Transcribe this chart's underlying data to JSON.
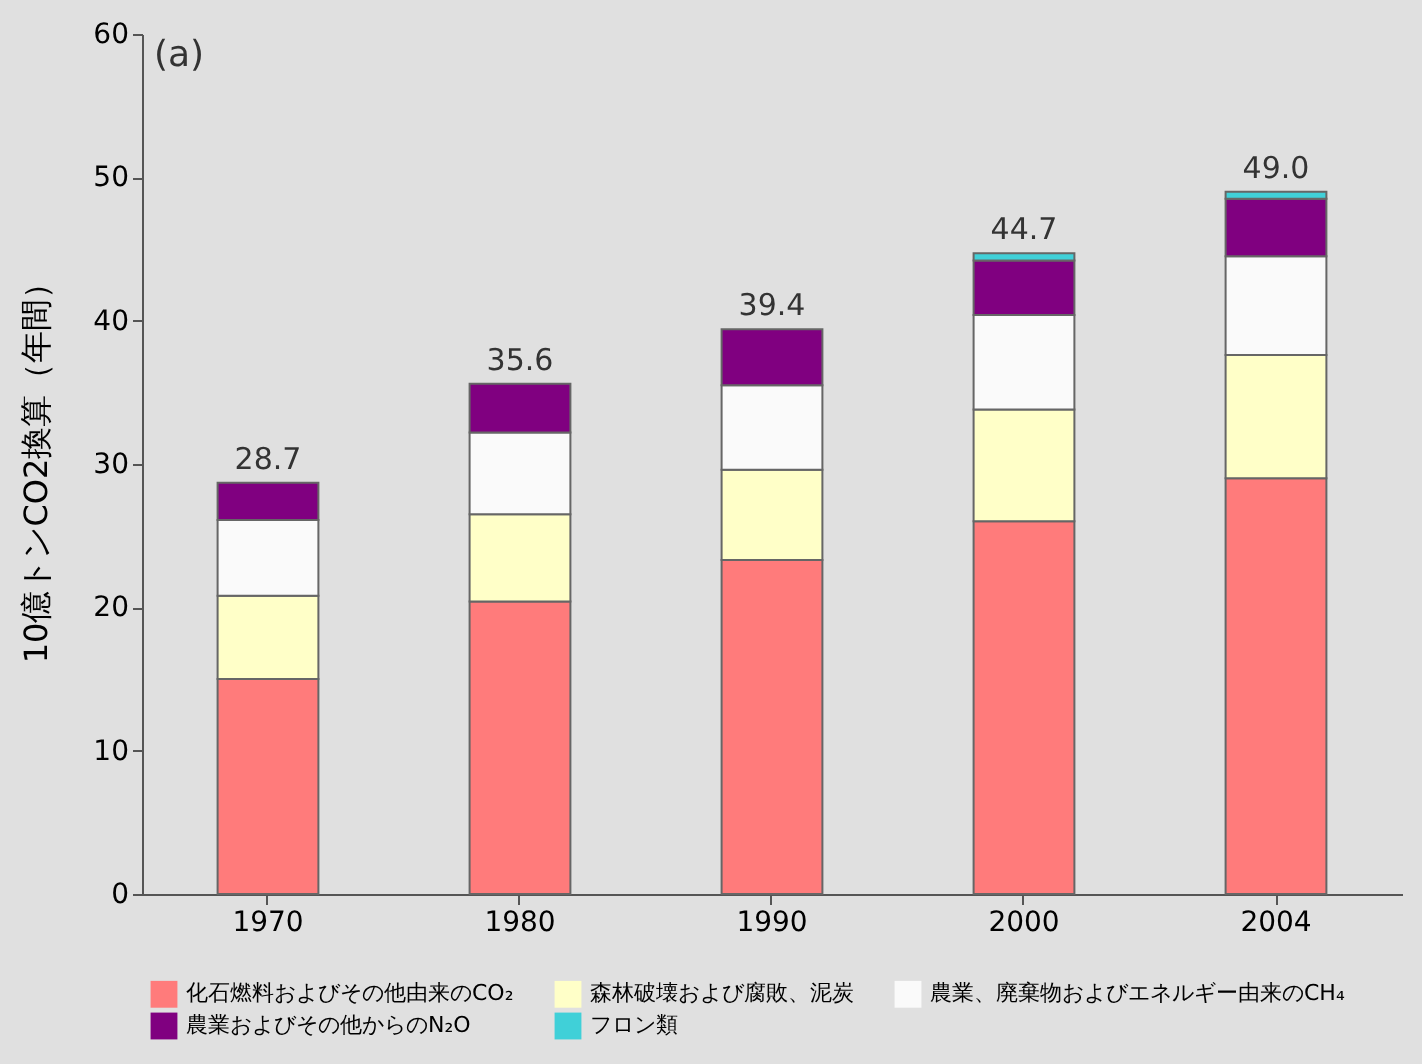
{
  "chart_data": {
    "type": "bar",
    "stacked": true,
    "ylabel": "10億トンCO2換算（年間）",
    "annotations": [
      "(a)"
    ],
    "categories": [
      "1970",
      "1980",
      "1990",
      "2000",
      "2004"
    ],
    "series": [
      {
        "name": "化石燃料およびその他由来のCO₂",
        "color": "#ff7b7b",
        "values": [
          15.0,
          20.4,
          23.3,
          26.0,
          29.0
        ]
      },
      {
        "name": "森林破壊および腐敗、泥炭",
        "color": "#ffffc8",
        "values": [
          5.8,
          6.1,
          6.3,
          7.8,
          8.6
        ]
      },
      {
        "name": "農業、廃棄物およびエネルギー由来のCH₄",
        "color": "#fafafa",
        "values": [
          5.3,
          5.7,
          5.9,
          6.6,
          6.9
        ]
      },
      {
        "name": "農業およびその他からのN₂O",
        "color": "#800080",
        "values": [
          2.6,
          3.4,
          3.9,
          3.8,
          4.0
        ]
      },
      {
        "name": "フロン類",
        "color": "#40d0d8",
        "values": [
          null,
          null,
          null,
          0.5,
          0.5
        ]
      }
    ],
    "totals": [
      "28.7",
      "35.6",
      "39.4",
      "44.7",
      "49.0"
    ],
    "ylim": [
      0,
      60
    ],
    "yticks": [
      0,
      10,
      20,
      30,
      40,
      50,
      60
    ],
    "legend": "bottom"
  }
}
